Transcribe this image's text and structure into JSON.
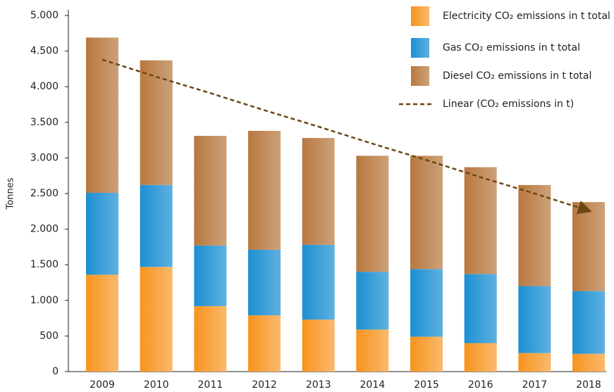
{
  "chart_data": {
    "type": "bar",
    "stacked": true,
    "y_label": "Tonnes",
    "categories": [
      "2009",
      "2010",
      "2011",
      "2012",
      "2013",
      "2014",
      "2015",
      "2016",
      "2017",
      "2018"
    ],
    "series": [
      {
        "name": "Electricity CO₂ emissions in t total",
        "color": "#f7941d",
        "values": [
          1360,
          1470,
          920,
          790,
          730,
          590,
          490,
          400,
          260,
          250
        ]
      },
      {
        "name": "Gas CO₂ emissions in t total",
        "color": "#1b8fd2",
        "values": [
          1150,
          1150,
          850,
          920,
          1050,
          810,
          950,
          970,
          940,
          880
        ]
      },
      {
        "name": "Diesel CO₂ emissions in t total",
        "color": "#b87840",
        "values": [
          2180,
          1750,
          1540,
          1670,
          1500,
          1630,
          1590,
          1500,
          1420,
          1250
        ]
      },
      {
        "name": "Linear (CO₂ emissions in t)",
        "color": "#6b4712",
        "type": "line",
        "values": [
          4380,
          4140,
          3910,
          3670,
          3440,
          3200,
          2970,
          2730,
          2500,
          2260
        ]
      }
    ],
    "ylim": [
      0,
      5000
    ],
    "yticks": [
      0,
      500,
      {
        "value": 1000,
        "label": "1.000"
      },
      {
        "value": 1500,
        "label": "1.500"
      },
      {
        "value": 2000,
        "label": "2.000"
      },
      {
        "value": 2500,
        "label": "2.500"
      },
      {
        "value": 3000,
        "label": "3.000"
      },
      {
        "value": 3500,
        "label": "3.500"
      },
      {
        "value": 4000,
        "label": "4.000"
      },
      {
        "value": 4500,
        "label": "4.500"
      },
      {
        "value": 5000,
        "label": "5.000"
      }
    ],
    "legend": "top-right"
  }
}
